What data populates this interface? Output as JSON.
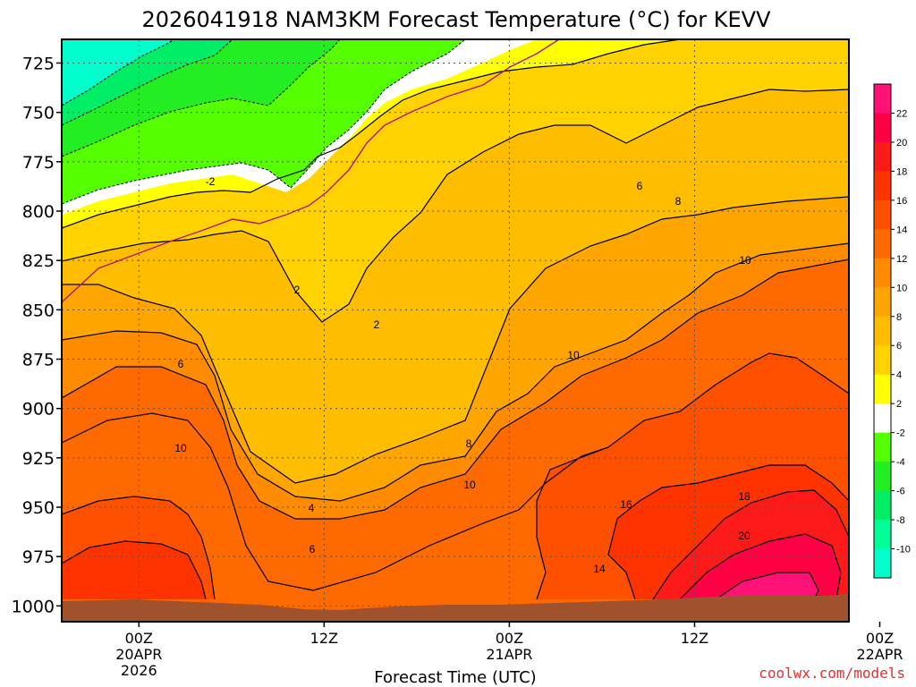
{
  "chart_data": {
    "type": "heatmap",
    "title": "2026041918 NAM3KM Forecast Temperature (°C) for KEVV",
    "xlabel": "Forecast Time (UTC)",
    "ylabel": "",
    "credit": "coolwx.com/models",
    "y_ticks": [
      {
        "label": "725",
        "value": 725
      },
      {
        "label": "750",
        "value": 750
      },
      {
        "label": "775",
        "value": 775
      },
      {
        "label": "800",
        "value": 800
      },
      {
        "label": "825",
        "value": 825
      },
      {
        "label": "850",
        "value": 850
      },
      {
        "label": "875",
        "value": 875
      },
      {
        "label": "900",
        "value": 900
      },
      {
        "label": "925",
        "value": 925
      },
      {
        "label": "950",
        "value": 950
      },
      {
        "label": "975",
        "value": 975
      },
      {
        "label": "1000",
        "value": 1000
      }
    ],
    "ylim": [
      1008,
      713
    ],
    "xlim_hours": [
      -5,
      46
    ],
    "x_ticks": [
      {
        "lines": [
          "00Z",
          "20APR",
          "2026"
        ],
        "hours": 0
      },
      {
        "lines": [
          "12Z"
        ],
        "hours": 12
      },
      {
        "lines": [
          "00Z",
          "21APR"
        ],
        "hours": 24
      },
      {
        "lines": [
          "12Z"
        ],
        "hours": 36
      },
      {
        "lines": [
          "00Z",
          "22APR"
        ],
        "hours": 48
      }
    ],
    "colorbar": {
      "labels": [
        "22",
        "20",
        "18",
        "16",
        "14",
        "12",
        "10",
        "8",
        "6",
        "4",
        "2",
        "-2",
        "-4",
        "-6",
        "-8",
        "-10"
      ],
      "bins": [
        {
          "min": 22,
          "max": 24,
          "color": "#ff1177"
        },
        {
          "min": 20,
          "max": 22,
          "color": "#ff0044"
        },
        {
          "min": 18,
          "max": 20,
          "color": "#ff1a1a"
        },
        {
          "min": 16,
          "max": 18,
          "color": "#ff3300"
        },
        {
          "min": 14,
          "max": 16,
          "color": "#ff5000"
        },
        {
          "min": 12,
          "max": 14,
          "color": "#ff6a00"
        },
        {
          "min": 10,
          "max": 12,
          "color": "#ff8c00"
        },
        {
          "min": 8,
          "max": 10,
          "color": "#ffa500"
        },
        {
          "min": 6,
          "max": 8,
          "color": "#ffbd00"
        },
        {
          "min": 4,
          "max": 6,
          "color": "#ffd200"
        },
        {
          "min": 2,
          "max": 4,
          "color": "#ffff00"
        },
        {
          "min": -2,
          "max": 2,
          "color": "#ffffff"
        },
        {
          "min": -4,
          "max": -2,
          "color": "#55ff00"
        },
        {
          "min": -6,
          "max": -4,
          "color": "#22ee22"
        },
        {
          "min": -8,
          "max": -6,
          "color": "#00ee66"
        },
        {
          "min": -10,
          "max": -8,
          "color": "#00ff99"
        },
        {
          "min": -12,
          "max": -10,
          "color": "#00ffcc"
        }
      ]
    },
    "ground_color": "#a0522d",
    "contour_labels": [
      {
        "text": "-2",
        "value": -2
      },
      {
        "text": "2",
        "value": 2
      },
      {
        "text": "2",
        "value": 2
      },
      {
        "text": "4",
        "value": 4
      },
      {
        "text": "6",
        "value": 6
      },
      {
        "text": "6",
        "value": 6
      },
      {
        "text": "6",
        "value": 6
      },
      {
        "text": "8",
        "value": 8
      },
      {
        "text": "8",
        "value": 8
      },
      {
        "text": "10",
        "value": 10
      },
      {
        "text": "10",
        "value": 10
      },
      {
        "text": "10",
        "value": 10
      },
      {
        "text": "10",
        "value": 10
      },
      {
        "text": "14",
        "value": 14
      },
      {
        "text": "16",
        "value": 16
      },
      {
        "text": "18",
        "value": 18
      },
      {
        "text": "20",
        "value": 20
      }
    ]
  }
}
